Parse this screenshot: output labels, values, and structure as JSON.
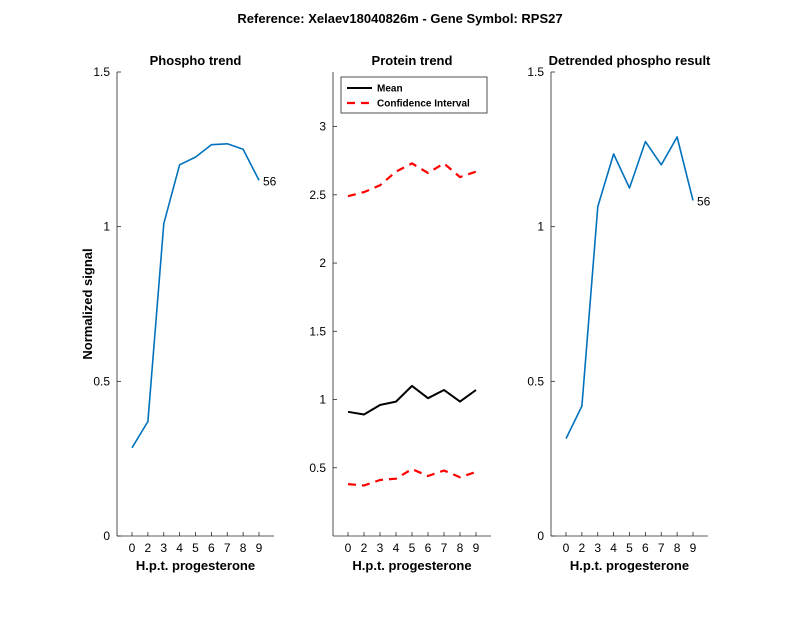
{
  "figure": {
    "title": "Reference:  Xelaev18040826m - Gene Symbol:  RPS27",
    "ylabel": "Normalized signal"
  },
  "colors": {
    "blue": "#0072BD",
    "black": "#000000",
    "red": "#FF0000"
  },
  "chart_data": [
    {
      "type": "line",
      "title": "Phospho trend",
      "xlabel": "H.p.t. progesterone",
      "ylabel": "Normalized signal",
      "x": [
        0,
        1,
        2,
        3,
        4,
        5,
        6,
        7,
        8
      ],
      "xtick_labels": [
        "0",
        "2",
        "3",
        "4",
        "5",
        "6",
        "7",
        "8",
        "9"
      ],
      "ylim": [
        0,
        1.5
      ],
      "yticks": [
        0,
        0.5,
        1,
        1.5
      ],
      "ytick_labels": [
        "0",
        "0.5",
        "1",
        "1.5"
      ],
      "series": [
        {
          "values": [
            0.285,
            0.37,
            1.01,
            1.2,
            1.225,
            1.265,
            1.268,
            1.25,
            1.15
          ],
          "color": "#0072BD",
          "end_label": "56"
        }
      ]
    },
    {
      "type": "line",
      "title": "Protein trend",
      "xlabel": "H.p.t. progesterone",
      "x": [
        0,
        1,
        2,
        3,
        4,
        5,
        6,
        7,
        8
      ],
      "xtick_labels": [
        "0",
        "2",
        "3",
        "4",
        "5",
        "6",
        "7",
        "8",
        "9"
      ],
      "ylim": [
        0,
        3.4
      ],
      "yticks": [
        0.5,
        1,
        1.5,
        2,
        2.5,
        3
      ],
      "ytick_labels": [
        "0.5",
        "1",
        "1.5",
        "2",
        "2.5",
        "3"
      ],
      "legend_position": "top-left",
      "series": [
        {
          "name": "Mean",
          "values": [
            0.91,
            0.89,
            0.96,
            0.985,
            1.1,
            1.01,
            1.07,
            0.985,
            1.07
          ],
          "color": "#000000",
          "dashed": false
        },
        {
          "name": "Confidence Interval",
          "values": [
            2.49,
            2.52,
            2.57,
            2.67,
            2.73,
            2.66,
            2.73,
            2.63,
            2.67
          ],
          "color": "#FF0000",
          "dashed": true
        },
        {
          "values": [
            0.38,
            0.37,
            0.41,
            0.42,
            0.49,
            0.44,
            0.48,
            0.43,
            0.47
          ],
          "color": "#FF0000",
          "dashed": true
        }
      ]
    },
    {
      "type": "line",
      "title": "Detrended phospho result",
      "xlabel": "H.p.t. progesterone",
      "x": [
        0,
        1,
        2,
        3,
        4,
        5,
        6,
        7,
        8
      ],
      "xtick_labels": [
        "0",
        "2",
        "3",
        "4",
        "5",
        "6",
        "7",
        "8",
        "9"
      ],
      "ylim": [
        0,
        1.5
      ],
      "yticks": [
        0,
        0.5,
        1,
        1.5
      ],
      "ytick_labels": [
        "0",
        "0.5",
        "1",
        "1.5"
      ],
      "series": [
        {
          "values": [
            0.315,
            0.42,
            1.065,
            1.235,
            1.125,
            1.275,
            1.2,
            1.29,
            1.085
          ],
          "color": "#0072BD",
          "end_label": "56"
        }
      ]
    }
  ]
}
